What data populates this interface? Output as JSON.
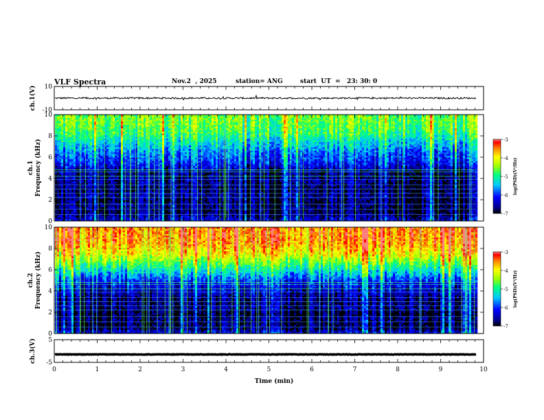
{
  "header": {
    "title": "VLF Spectra",
    "date": "Nov.2  , 2025",
    "station": "station= ANG",
    "start": "start  UT  =   23: 30: 0"
  },
  "chart_data": [
    {
      "type": "line",
      "name": "ch1-waveform",
      "ylabel": "ch.1(V)",
      "ylim": [
        -10,
        10
      ],
      "y_ticks": [
        "10",
        "-10"
      ],
      "xlim": [
        0,
        10
      ],
      "baseline": 0,
      "data_end_min": 9.83,
      "color": "#000000"
    },
    {
      "type": "heatmap",
      "name": "ch1-spectrogram",
      "ylabel_channel": "ch.1",
      "ylabel": "Frequency  (kHz)",
      "ylim": [
        0,
        10
      ],
      "y_ticks": [
        "0",
        "2",
        "4",
        "6",
        "8",
        "10"
      ],
      "xlim": [
        0,
        10
      ],
      "data_end_min": 9.83,
      "colorbar": {
        "label": "log(PSD)(V²/Hz)",
        "range": [
          -7,
          -3
        ],
        "ticks": [
          "-3",
          "-4",
          "-5",
          "-6",
          "-7"
        ]
      },
      "band_profile_log_psd": [
        {
          "khz": 0,
          "value": -6.2
        },
        {
          "khz": 0.5,
          "value": -6.6
        },
        {
          "khz": 1,
          "value": -6.8
        },
        {
          "khz": 1.5,
          "value": -6.7
        },
        {
          "khz": 2,
          "value": -6.8
        },
        {
          "khz": 2.5,
          "value": -6.6
        },
        {
          "khz": 3,
          "value": -6.8
        },
        {
          "khz": 3.5,
          "value": -6.7
        },
        {
          "khz": 4,
          "value": -6.6
        },
        {
          "khz": 4.5,
          "value": -6.7
        },
        {
          "khz": 5,
          "value": -6.4
        },
        {
          "khz": 5.5,
          "value": -6.1
        },
        {
          "khz": 6,
          "value": -5.9
        },
        {
          "khz": 6.5,
          "value": -5.8
        },
        {
          "khz": 7,
          "value": -5.5
        },
        {
          "khz": 7.5,
          "value": -5.3
        },
        {
          "khz": 8,
          "value": -5.0
        },
        {
          "khz": 8.5,
          "value": -4.8
        },
        {
          "khz": 9,
          "value": -4.7
        },
        {
          "khz": 9.5,
          "value": -4.6
        },
        {
          "khz": 10,
          "value": -4.6
        }
      ]
    },
    {
      "type": "heatmap",
      "name": "ch2-spectrogram",
      "ylabel_channel": "ch.2",
      "ylabel": "Frequency  (kHz)",
      "ylim": [
        0,
        10
      ],
      "y_ticks": [
        "0",
        "2",
        "4",
        "6",
        "8",
        "10"
      ],
      "xlim": [
        0,
        10
      ],
      "data_end_min": 9.83,
      "colorbar": {
        "label": "log(PSD)(V²/Hz)",
        "range": [
          -7,
          -3
        ],
        "ticks": [
          "-3",
          "-4",
          "-5",
          "-6",
          "-7"
        ]
      },
      "band_profile_log_psd": [
        {
          "khz": 0,
          "value": -6.0
        },
        {
          "khz": 0.5,
          "value": -6.7
        },
        {
          "khz": 1,
          "value": -6.8
        },
        {
          "khz": 1.5,
          "value": -6.7
        },
        {
          "khz": 2,
          "value": -6.9
        },
        {
          "khz": 2.5,
          "value": -6.6
        },
        {
          "khz": 3,
          "value": -6.7
        },
        {
          "khz": 3.5,
          "value": -6.6
        },
        {
          "khz": 4,
          "value": -6.4
        },
        {
          "khz": 4.5,
          "value": -6.2
        },
        {
          "khz": 5,
          "value": -6.0
        },
        {
          "khz": 5.5,
          "value": -5.6
        },
        {
          "khz": 6,
          "value": -5.2
        },
        {
          "khz": 6.5,
          "value": -4.8
        },
        {
          "khz": 7,
          "value": -4.4
        },
        {
          "khz": 7.5,
          "value": -4.0
        },
        {
          "khz": 8,
          "value": -3.8
        },
        {
          "khz": 8.5,
          "value": -3.6
        },
        {
          "khz": 9,
          "value": -3.5
        },
        {
          "khz": 9.5,
          "value": -3.5
        },
        {
          "khz": 10,
          "value": -3.5
        }
      ]
    },
    {
      "type": "line",
      "name": "ch3-waveform",
      "ylabel": "ch.3(V)",
      "ylim": [
        -5,
        5
      ],
      "y_ticks": [
        "5",
        "-5"
      ],
      "xlim": [
        0,
        10
      ],
      "baseline": -1.5,
      "data_end_min": 9.83,
      "color": "#000000"
    }
  ],
  "x_axis": {
    "label": "Time  (min)",
    "ticks": [
      "0",
      "1",
      "2",
      "3",
      "4",
      "5",
      "6",
      "7",
      "8",
      "9",
      "10"
    ]
  }
}
